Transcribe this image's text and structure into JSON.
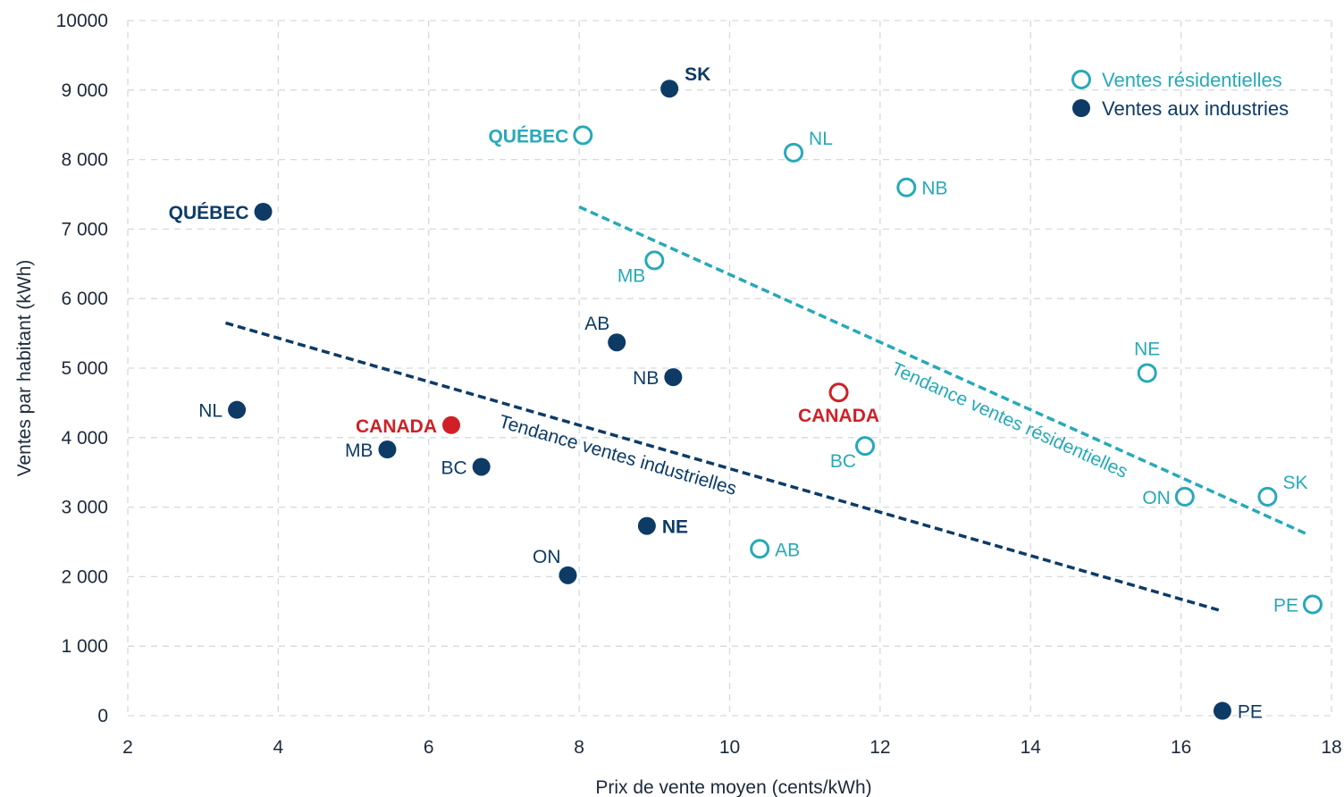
{
  "chart_data": {
    "type": "scatter",
    "title": "",
    "xlabel": "Prix de vente moyen (cents/kWh)",
    "ylabel": "Ventes par habitant (kWh)",
    "xlim": [
      2,
      18
    ],
    "ylim": [
      0,
      10000
    ],
    "x_ticks": [
      {
        "value": 2,
        "label": "2"
      },
      {
        "value": 4,
        "label": "4"
      },
      {
        "value": 6,
        "label": "6"
      },
      {
        "value": 8,
        "label": "8"
      },
      {
        "value": 10,
        "label": "10"
      },
      {
        "value": 12,
        "label": "12"
      },
      {
        "value": 14,
        "label": "14"
      },
      {
        "value": 16,
        "label": "16"
      },
      {
        "value": 18,
        "label": "18"
      }
    ],
    "y_ticks": [
      {
        "value": 0,
        "label": "0"
      },
      {
        "value": 1000,
        "label": "1 000"
      },
      {
        "value": 2000,
        "label": "2 000"
      },
      {
        "value": 3000,
        "label": "3 000"
      },
      {
        "value": 4000,
        "label": "4 000"
      },
      {
        "value": 5000,
        "label": "5 000"
      },
      {
        "value": 6000,
        "label": "6 000"
      },
      {
        "value": 7000,
        "label": "7 000"
      },
      {
        "value": 8000,
        "label": "8 000"
      },
      {
        "value": 9000,
        "label": "9 000"
      },
      {
        "value": 10000,
        "label": "10000"
      }
    ],
    "grid": true,
    "legend_position": "top-right",
    "series": [
      {
        "name": "Ventes résidentielles",
        "marker": "hollow-circle",
        "color": "#27a9b8",
        "points": [
          {
            "label": "QUÉBEC",
            "x": 8.05,
            "y": 8350,
            "bold": true,
            "pos": "left"
          },
          {
            "label": "NL",
            "x": 10.85,
            "y": 8100,
            "pos": "upper-right"
          },
          {
            "label": "NB",
            "x": 12.35,
            "y": 7600,
            "pos": "right"
          },
          {
            "label": "MB",
            "x": 9.0,
            "y": 6550,
            "pos": "lower-left"
          },
          {
            "label": "NE",
            "x": 15.55,
            "y": 4930,
            "pos": "above"
          },
          {
            "label": "CANADA",
            "x": 11.45,
            "y": 4650,
            "bold": true,
            "color": "#cf2027",
            "pos": "below"
          },
          {
            "label": "BC",
            "x": 11.8,
            "y": 3880,
            "pos": "lower-left"
          },
          {
            "label": "ON",
            "x": 16.05,
            "y": 3150,
            "pos": "left"
          },
          {
            "label": "SK",
            "x": 17.15,
            "y": 3150,
            "pos": "upper-right"
          },
          {
            "label": "AB",
            "x": 10.4,
            "y": 2400,
            "pos": "right"
          },
          {
            "label": "PE",
            "x": 17.75,
            "y": 1600,
            "pos": "left"
          }
        ]
      },
      {
        "name": "Ventes aux industries",
        "marker": "filled-circle",
        "color": "#0d3b66",
        "points": [
          {
            "label": "SK",
            "x": 9.2,
            "y": 9020,
            "bold": true,
            "pos": "upper-right"
          },
          {
            "label": "QUÉBEC",
            "x": 3.8,
            "y": 7250,
            "bold": true,
            "pos": "left"
          },
          {
            "label": "AB",
            "x": 8.5,
            "y": 5370,
            "pos": "upper-left"
          },
          {
            "label": "NB",
            "x": 9.25,
            "y": 4870,
            "pos": "left"
          },
          {
            "label": "NL",
            "x": 3.45,
            "y": 4400,
            "pos": "left"
          },
          {
            "label": "CANADA",
            "x": 6.3,
            "y": 4180,
            "bold": true,
            "color": "#cf2027",
            "pos": "left"
          },
          {
            "label": "MB",
            "x": 5.45,
            "y": 3830,
            "pos": "left"
          },
          {
            "label": "BC",
            "x": 6.7,
            "y": 3580,
            "pos": "left"
          },
          {
            "label": "NE",
            "x": 8.9,
            "y": 2730,
            "bold": true,
            "pos": "right"
          },
          {
            "label": "ON",
            "x": 7.85,
            "y": 2020,
            "pos": "upper-left"
          },
          {
            "label": "PE",
            "x": 16.55,
            "y": 70,
            "pos": "right"
          }
        ]
      }
    ],
    "trend_lines": [
      {
        "name": "Tendance ventes résidentielles",
        "color": "#27a9b8",
        "from": [
          8.0,
          7320
        ],
        "to": [
          17.7,
          2600
        ],
        "label_at": 0.6
      },
      {
        "name": "Tendance ventes industrielles",
        "color": "#0d3b66",
        "from": [
          3.3,
          5650
        ],
        "to": [
          16.5,
          1520
        ],
        "label_at": 0.4
      }
    ]
  }
}
